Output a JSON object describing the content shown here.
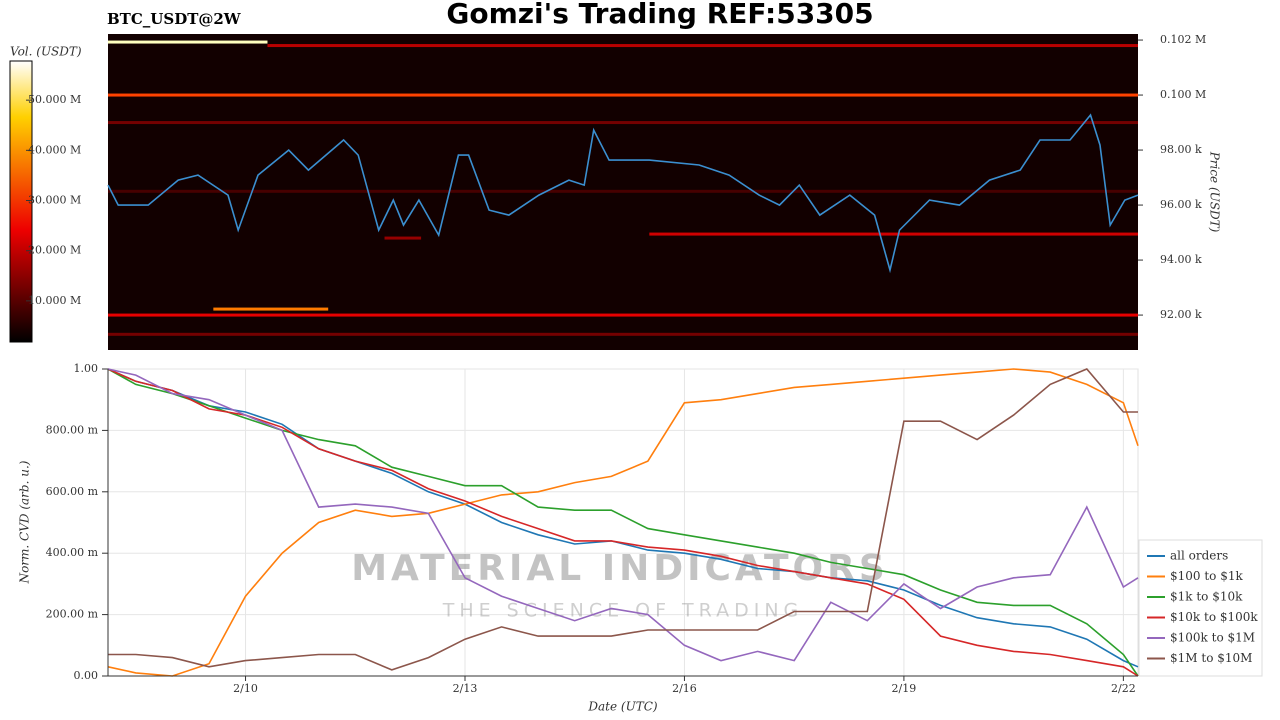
{
  "chart_data": [
    {
      "type": "heatmap",
      "title": "Gomzi's Trading REF:53305",
      "subtitle": "BTC_USDT@2W",
      "ylabel": "Price (USDT)",
      "xlim": [
        8.12,
        22.2
      ],
      "ylim": [
        90730,
        102220
      ],
      "yticks": [
        {
          "value": 92000,
          "label": "92.00 k"
        },
        {
          "value": 94000,
          "label": "94.00 k"
        },
        {
          "value": 96000,
          "label": "96.00 k"
        },
        {
          "value": 98000,
          "label": "98.00 k"
        },
        {
          "value": 100000,
          "label": "0.100 M"
        },
        {
          "value": 102000,
          "label": "0.102 M"
        }
      ],
      "colorbar": {
        "label": "Vol. (USDT)",
        "lim": [
          1800000,
          57800000
        ],
        "ticks": [
          {
            "value": 10000000,
            "label": "10.000 M"
          },
          {
            "value": 20000000,
            "label": "20.000 M"
          },
          {
            "value": 30000000,
            "label": "30.000 M"
          },
          {
            "value": 40000000,
            "label": "40.000 M"
          },
          {
            "value": 50000000,
            "label": "50.000 M"
          }
        ]
      },
      "bands": [
        {
          "price": 101927,
          "volume": 55000000,
          "start": 8.12,
          "end": 10.3
        },
        {
          "price": 101800,
          "volume": 18000000,
          "start": 10.3,
          "end": 22.2
        },
        {
          "price": 100000,
          "volume": 30000000,
          "start": 8.12,
          "end": 22.2
        },
        {
          "price": 99000,
          "volume": 12000000,
          "start": 8.12,
          "end": 22.2
        },
        {
          "price": 96500,
          "volume": 8000000,
          "start": 8.12,
          "end": 22.2
        },
        {
          "price": 94945,
          "volume": 20000000,
          "start": 15.52,
          "end": 22.2
        },
        {
          "price": 94800,
          "volume": 15000000,
          "start": 11.9,
          "end": 12.4
        },
        {
          "price": 92218,
          "volume": 35000000,
          "start": 9.56,
          "end": 11.13
        },
        {
          "price": 92000,
          "volume": 22000000,
          "start": 8.12,
          "end": 22.2
        },
        {
          "price": 91300,
          "volume": 12000000,
          "start": 8.12,
          "end": 22.2
        }
      ],
      "x": [
        8.12,
        8.26,
        8.67,
        9.08,
        9.35,
        9.76,
        9.9,
        10.17,
        10.59,
        10.86,
        11.34,
        11.54,
        11.82,
        12.02,
        12.16,
        12.37,
        12.64,
        12.91,
        13.05,
        13.33,
        13.6,
        14.01,
        14.42,
        14.63,
        14.76,
        14.97,
        15.52,
        16.2,
        16.61,
        17.02,
        17.3,
        17.57,
        17.85,
        18.26,
        18.6,
        18.81,
        18.94,
        19.35,
        19.76,
        20.17,
        20.59,
        20.86,
        21.27,
        21.55,
        21.68,
        21.82,
        22.02,
        22.2
      ],
      "series": [
        {
          "color": "#3b8fd0",
          "values": [
            96727,
            96000,
            96000,
            96909,
            97091,
            96364,
            95091,
            97091,
            98000,
            97273,
            98364,
            97818,
            95091,
            96182,
            95273,
            96182,
            94909,
            97818,
            97818,
            95818,
            95636,
            96364,
            96909,
            96727,
            98727,
            97636,
            97636,
            97455,
            97091,
            96364,
            96000,
            96727,
            95636,
            96364,
            95636,
            93636,
            95091,
            96182,
            96000,
            96909,
            97273,
            98364,
            98364,
            99273,
            98182,
            95273,
            96182,
            96364
          ]
        }
      ]
    },
    {
      "type": "line",
      "xlabel": "Date (UTC)",
      "ylabel": "Norm. CVD (arb. u.)",
      "xlim": [
        8.12,
        22.2
      ],
      "ylim": [
        0,
        1
      ],
      "grid": true,
      "legend": "lower right",
      "xticks": [
        {
          "value": 10,
          "label": "2/10"
        },
        {
          "value": 13,
          "label": "2/13"
        },
        {
          "value": 16,
          "label": "2/16"
        },
        {
          "value": 19,
          "label": "2/19"
        },
        {
          "value": 22,
          "label": "2/22"
        }
      ],
      "yticks": [
        {
          "value": 0,
          "label": "0.00"
        },
        {
          "value": 0.2,
          "label": "200.00 m"
        },
        {
          "value": 0.4,
          "label": "400.00 m"
        },
        {
          "value": 0.6,
          "label": "600.00 m"
        },
        {
          "value": 0.8,
          "label": "800.00 m"
        },
        {
          "value": 1,
          "label": "1.00"
        }
      ],
      "annotations": [
        "MATERIAL INDICATORS",
        "THE SCIENCE OF TRADING"
      ],
      "x": [
        8.12,
        8.5,
        9,
        9.5,
        10,
        10.5,
        11,
        11.5,
        12,
        12.5,
        13,
        13.5,
        14,
        14.5,
        15,
        15.5,
        16,
        16.5,
        17,
        17.5,
        18,
        18.5,
        19,
        19.5,
        20,
        20.5,
        21,
        21.5,
        22,
        22.2
      ],
      "series": [
        {
          "name": "all orders",
          "color": "#1f77b4",
          "values": [
            1.0,
            0.96,
            0.93,
            0.88,
            0.86,
            0.82,
            0.74,
            0.7,
            0.66,
            0.6,
            0.56,
            0.5,
            0.46,
            0.43,
            0.44,
            0.41,
            0.4,
            0.38,
            0.35,
            0.34,
            0.32,
            0.31,
            0.28,
            0.23,
            0.19,
            0.17,
            0.16,
            0.12,
            0.05,
            0.03
          ]
        },
        {
          "name": "$100 to $1k",
          "color": "#ff7f0e",
          "values": [
            0.03,
            0.01,
            0.0,
            0.04,
            0.26,
            0.4,
            0.5,
            0.54,
            0.52,
            0.53,
            0.56,
            0.59,
            0.6,
            0.63,
            0.65,
            0.7,
            0.89,
            0.9,
            0.92,
            0.94,
            0.95,
            0.96,
            0.97,
            0.98,
            0.99,
            1.0,
            0.99,
            0.95,
            0.89,
            0.75
          ]
        },
        {
          "name": "$1k to $10k",
          "color": "#2ca02c",
          "values": [
            1.0,
            0.95,
            0.92,
            0.88,
            0.84,
            0.8,
            0.77,
            0.75,
            0.68,
            0.65,
            0.62,
            0.62,
            0.55,
            0.54,
            0.54,
            0.48,
            0.46,
            0.44,
            0.42,
            0.4,
            0.37,
            0.35,
            0.33,
            0.28,
            0.24,
            0.23,
            0.23,
            0.17,
            0.07,
            0.0
          ]
        },
        {
          "name": "$10k to $100k",
          "color": "#d62728",
          "values": [
            1.0,
            0.96,
            0.93,
            0.87,
            0.85,
            0.81,
            0.74,
            0.7,
            0.67,
            0.61,
            0.57,
            0.52,
            0.48,
            0.44,
            0.44,
            0.42,
            0.41,
            0.39,
            0.36,
            0.34,
            0.32,
            0.3,
            0.25,
            0.13,
            0.1,
            0.08,
            0.07,
            0.05,
            0.03,
            0.0
          ]
        },
        {
          "name": "$100k to $1M",
          "color": "#9467bd",
          "values": [
            1.0,
            0.98,
            0.92,
            0.9,
            0.85,
            0.8,
            0.55,
            0.56,
            0.55,
            0.53,
            0.32,
            0.26,
            0.22,
            0.18,
            0.22,
            0.2,
            0.1,
            0.05,
            0.08,
            0.05,
            0.24,
            0.18,
            0.3,
            0.22,
            0.29,
            0.32,
            0.33,
            0.55,
            0.29,
            0.32
          ]
        },
        {
          "name": "$1M to $10M",
          "color": "#8c564b",
          "values": [
            0.07,
            0.07,
            0.06,
            0.03,
            0.05,
            0.06,
            0.07,
            0.07,
            0.02,
            0.06,
            0.12,
            0.16,
            0.13,
            0.13,
            0.13,
            0.15,
            0.15,
            0.15,
            0.15,
            0.21,
            0.21,
            0.21,
            0.83,
            0.83,
            0.77,
            0.85,
            0.95,
            1.0,
            0.86,
            0.86
          ]
        }
      ]
    }
  ]
}
